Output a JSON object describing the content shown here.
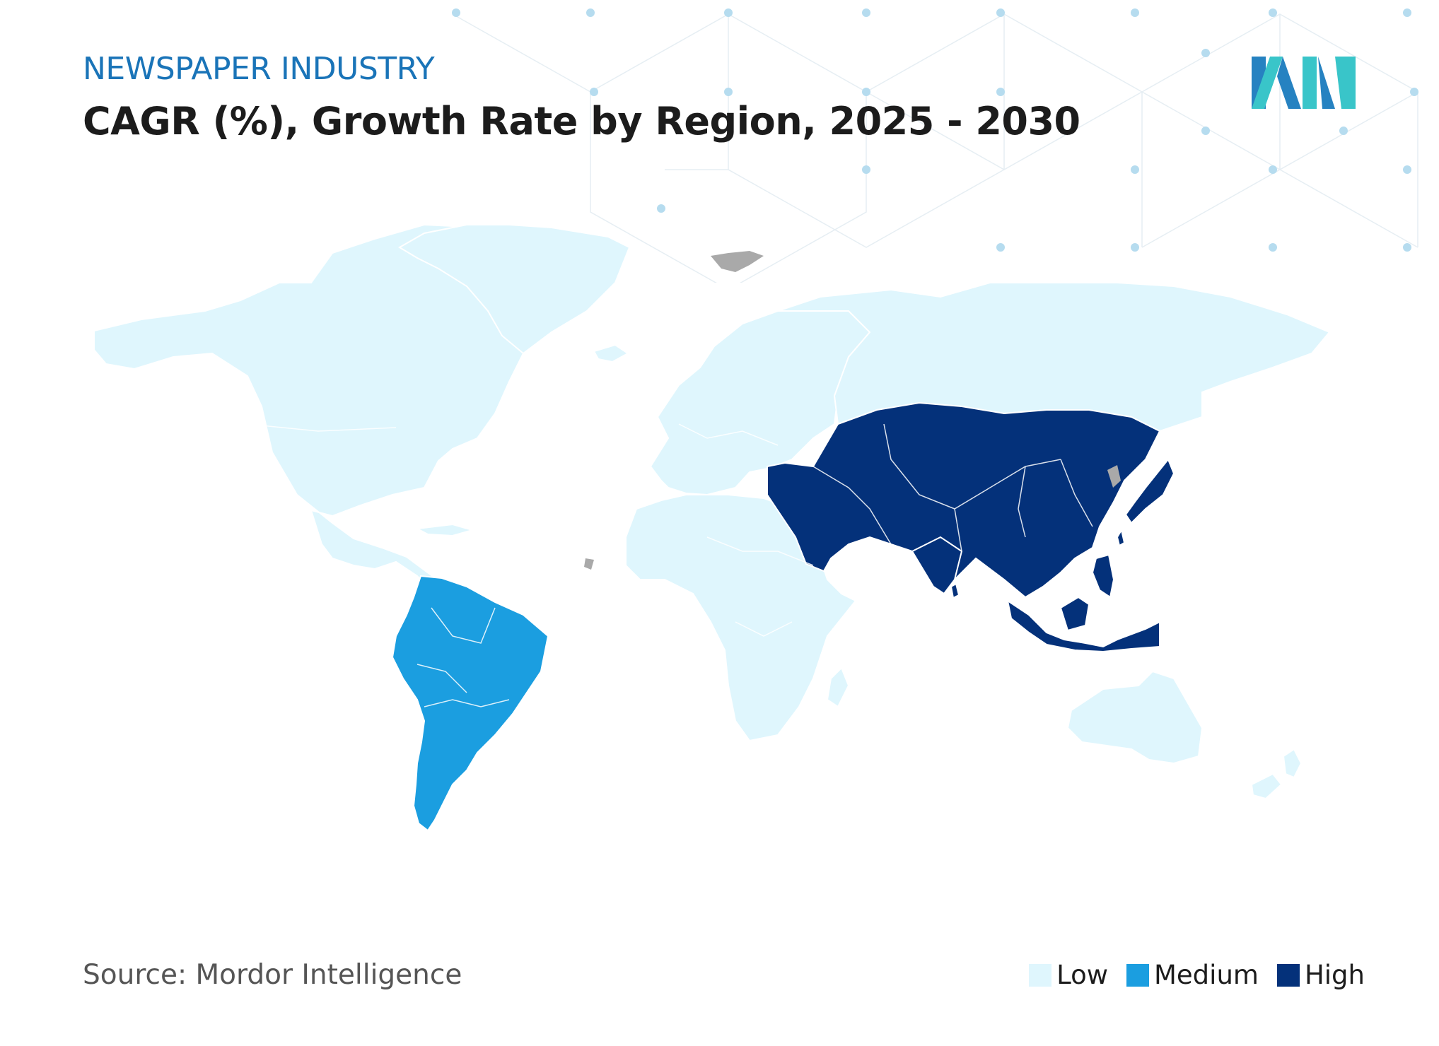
{
  "header": {
    "kicker": "NEWSPAPER INDUSTRY",
    "title": "CAGR (%), Growth Rate by Region, 2025 - 2030"
  },
  "footer": {
    "source": "Source: Mordor Intelligence"
  },
  "legend": [
    {
      "label": "Low",
      "color": "#dff6fd"
    },
    {
      "label": "Medium",
      "color": "#1b9ee0"
    },
    {
      "label": "High",
      "color": "#04317a"
    }
  ],
  "colors": {
    "kicker": "#1a74b8",
    "title": "#1c1c1c",
    "source": "#555555",
    "no_data": "#a9a9a9",
    "logo_dark": "#2682c1",
    "logo_light": "#39c5c9"
  },
  "map_data": {
    "type": "choropleth",
    "regions": [
      {
        "region": "North America",
        "level": "Low"
      },
      {
        "region": "Europe",
        "level": "Low"
      },
      {
        "region": "Africa",
        "level": "Low"
      },
      {
        "region": "Australia",
        "level": "Low"
      },
      {
        "region": "South America",
        "level": "Medium"
      },
      {
        "region": "Asia",
        "level": "High"
      },
      {
        "region": "Middle East",
        "level": "High"
      }
    ]
  }
}
